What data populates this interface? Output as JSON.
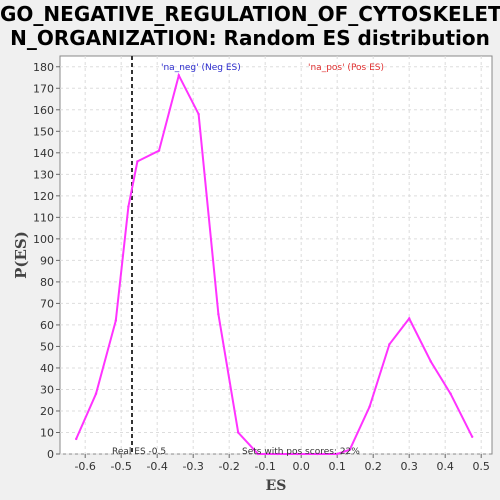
{
  "chart_data": {
    "type": "line",
    "title_line1": "GO_NEGATIVE_REGULATION_OF_CYTOSKELETO",
    "title_line2": "N_ORGANIZATION: Random ES distribution",
    "xlabel": "ES",
    "ylabel": "P(ES)",
    "xlim": [
      -0.67,
      0.53
    ],
    "ylim": [
      0,
      185
    ],
    "x_ticks": [
      -0.6,
      -0.5,
      -0.4,
      -0.3,
      -0.2,
      -0.1,
      0.0,
      0.1,
      0.2,
      0.3,
      0.4,
      0.5
    ],
    "x_tick_labels": [
      "-0.6",
      "-0.5",
      "-0.4",
      "-0.3",
      "-0.2",
      "-0.1",
      "0.0",
      "0.1",
      "0.2",
      "0.3",
      "0.4",
      "0.5"
    ],
    "y_ticks": [
      0,
      10,
      20,
      30,
      40,
      50,
      60,
      70,
      80,
      90,
      100,
      110,
      120,
      130,
      140,
      150,
      160,
      170,
      180
    ],
    "grid": true,
    "series": [
      {
        "color": "#ff33ff",
        "x": [
          -0.625,
          -0.57,
          -0.515,
          -0.48,
          -0.455,
          -0.395,
          -0.34,
          -0.285,
          -0.23,
          -0.175,
          -0.12,
          -0.065,
          -0.01,
          0.045,
          0.1,
          0.135,
          0.19,
          0.245,
          0.3,
          0.36,
          0.415,
          0.475
        ],
        "y": [
          7,
          28,
          62,
          115,
          136,
          141,
          176,
          158,
          65,
          10,
          0,
          0,
          0,
          0,
          0,
          2,
          22,
          51,
          63,
          43,
          28,
          8
        ]
      }
    ],
    "real_es": {
      "value": -0.47,
      "label": "Real ES -0.5"
    },
    "legend": [
      {
        "text": "'na_neg' (Neg ES)",
        "color": "#2a2acc"
      },
      {
        "text": "'na_pos' (Pos ES)",
        "color": "#e03030"
      }
    ],
    "annotation": "Sets with pos scores: 22%"
  }
}
